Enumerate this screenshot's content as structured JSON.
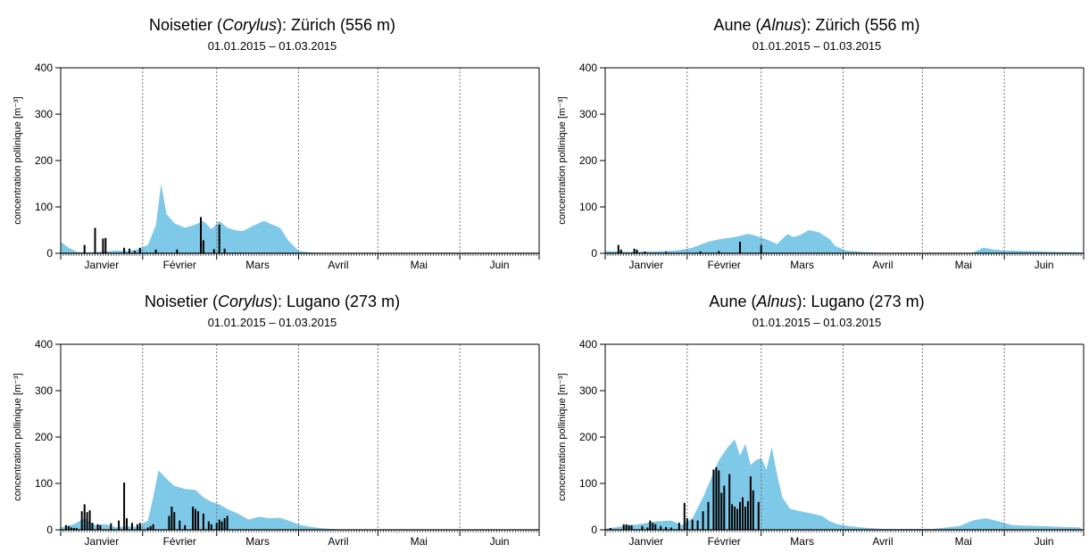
{
  "chart_data": [
    {
      "type": "area",
      "title_prefix": "Noisetier (",
      "title_taxon": "Corylus",
      "title_suffix": "): Zürich (556 m)",
      "subtitle": "01.01.2015 – 01.03.2015",
      "ylabel": "concentration pollinique [m⁻³]",
      "ylim": [
        0,
        400
      ],
      "yticks": [
        0,
        100,
        200,
        300,
        400
      ],
      "months": [
        "Janvier",
        "Février",
        "Mars",
        "Avril",
        "Mai",
        "Juin"
      ],
      "x_unit": "day of year 2015",
      "area_color": "#7ec8e8",
      "bar_color": "#000000",
      "series": [
        {
          "kind": "area",
          "points": [
            [
              1,
              25
            ],
            [
              4,
              12
            ],
            [
              7,
              3
            ],
            [
              12,
              2
            ],
            [
              18,
              4
            ],
            [
              22,
              6
            ],
            [
              26,
              5
            ],
            [
              30,
              8
            ],
            [
              34,
              18
            ],
            [
              37,
              60
            ],
            [
              39,
              150
            ],
            [
              41,
              85
            ],
            [
              44,
              65
            ],
            [
              48,
              55
            ],
            [
              52,
              62
            ],
            [
              55,
              70
            ],
            [
              58,
              52
            ],
            [
              61,
              70
            ],
            [
              64,
              55
            ],
            [
              67,
              50
            ],
            [
              70,
              48
            ],
            [
              74,
              60
            ],
            [
              78,
              70
            ],
            [
              81,
              62
            ],
            [
              84,
              55
            ],
            [
              87,
              28
            ],
            [
              91,
              5
            ],
            [
              95,
              2
            ],
            [
              101,
              0
            ],
            [
              181,
              0
            ]
          ]
        },
        {
          "kind": "bars",
          "points": [
            [
              10,
              18
            ],
            [
              14,
              55
            ],
            [
              17,
              32
            ],
            [
              18,
              33
            ],
            [
              25,
              12
            ],
            [
              27,
              10
            ],
            [
              29,
              5
            ],
            [
              31,
              12
            ],
            [
              37,
              8
            ],
            [
              45,
              8
            ],
            [
              54,
              78
            ],
            [
              55,
              28
            ],
            [
              59,
              9
            ],
            [
              61,
              62
            ],
            [
              63,
              10
            ]
          ]
        }
      ]
    },
    {
      "type": "area",
      "title_prefix": "Aune (",
      "title_taxon": "Alnus",
      "title_suffix": "): Zürich (556 m)",
      "subtitle": "01.01.2015 – 01.03.2015",
      "ylabel": "concentration pollinique [m⁻³]",
      "ylim": [
        0,
        400
      ],
      "yticks": [
        0,
        100,
        200,
        300,
        400
      ],
      "months": [
        "Janvier",
        "Février",
        "Mars",
        "Avril",
        "Mai",
        "Juin"
      ],
      "x_unit": "day of year 2015",
      "area_color": "#7ec8e8",
      "bar_color": "#000000",
      "series": [
        {
          "kind": "area",
          "points": [
            [
              1,
              5
            ],
            [
              10,
              3
            ],
            [
              20,
              4
            ],
            [
              28,
              6
            ],
            [
              34,
              12
            ],
            [
              40,
              25
            ],
            [
              44,
              30
            ],
            [
              50,
              35
            ],
            [
              55,
              42
            ],
            [
              58,
              38
            ],
            [
              62,
              30
            ],
            [
              66,
              20
            ],
            [
              70,
              42
            ],
            [
              72,
              35
            ],
            [
              75,
              40
            ],
            [
              78,
              50
            ],
            [
              82,
              45
            ],
            [
              86,
              30
            ],
            [
              88,
              16
            ],
            [
              92,
              6
            ],
            [
              98,
              3
            ],
            [
              105,
              1
            ],
            [
              140,
              1
            ],
            [
              144,
              12
            ],
            [
              148,
              8
            ],
            [
              152,
              6
            ],
            [
              160,
              5
            ],
            [
              170,
              3
            ],
            [
              181,
              2
            ]
          ]
        },
        {
          "kind": "bars",
          "points": [
            [
              6,
              18
            ],
            [
              7,
              8
            ],
            [
              12,
              10
            ],
            [
              13,
              8
            ],
            [
              16,
              4
            ],
            [
              24,
              3
            ],
            [
              37,
              4
            ],
            [
              44,
              5
            ],
            [
              52,
              25
            ],
            [
              60,
              18
            ]
          ]
        }
      ]
    },
    {
      "type": "area",
      "title_prefix": "Noisetier (",
      "title_taxon": "Corylus",
      "title_suffix": "): Lugano (273 m)",
      "subtitle": "01.01.2015 – 01.03.2015",
      "ylabel": "concentration pollinique [m⁻³]",
      "ylim": [
        0,
        400
      ],
      "yticks": [
        0,
        100,
        200,
        300,
        400
      ],
      "months": [
        "Janvier",
        "Février",
        "Mars",
        "Avril",
        "Mai",
        "Juin"
      ],
      "x_unit": "day of year 2015",
      "area_color": "#7ec8e8",
      "bar_color": "#000000",
      "series": [
        {
          "kind": "area",
          "points": [
            [
              1,
              5
            ],
            [
              6,
              12
            ],
            [
              10,
              25
            ],
            [
              14,
              10
            ],
            [
              18,
              12
            ],
            [
              22,
              5
            ],
            [
              26,
              8
            ],
            [
              30,
              6
            ],
            [
              34,
              20
            ],
            [
              36,
              70
            ],
            [
              38,
              128
            ],
            [
              41,
              110
            ],
            [
              44,
              95
            ],
            [
              48,
              88
            ],
            [
              52,
              86
            ],
            [
              55,
              70
            ],
            [
              58,
              60
            ],
            [
              61,
              55
            ],
            [
              64,
              45
            ],
            [
              68,
              35
            ],
            [
              72,
              22
            ],
            [
              76,
              28
            ],
            [
              80,
              25
            ],
            [
              84,
              26
            ],
            [
              88,
              18
            ],
            [
              92,
              10
            ],
            [
              96,
              6
            ],
            [
              100,
              3
            ],
            [
              106,
              1
            ],
            [
              181,
              0
            ]
          ]
        },
        {
          "kind": "bars",
          "points": [
            [
              3,
              10
            ],
            [
              4,
              8
            ],
            [
              5,
              5
            ],
            [
              6,
              4
            ],
            [
              7,
              4
            ],
            [
              9,
              40
            ],
            [
              10,
              55
            ],
            [
              11,
              38
            ],
            [
              12,
              42
            ],
            [
              13,
              15
            ],
            [
              15,
              12
            ],
            [
              16,
              10
            ],
            [
              20,
              14
            ],
            [
              23,
              20
            ],
            [
              25,
              102
            ],
            [
              26,
              25
            ],
            [
              28,
              15
            ],
            [
              30,
              12
            ],
            [
              31,
              15
            ],
            [
              34,
              5
            ],
            [
              35,
              8
            ],
            [
              36,
              12
            ],
            [
              42,
              30
            ],
            [
              43,
              50
            ],
            [
              44,
              38
            ],
            [
              46,
              20
            ],
            [
              48,
              10
            ],
            [
              51,
              50
            ],
            [
              52,
              45
            ],
            [
              53,
              40
            ],
            [
              55,
              35
            ],
            [
              57,
              18
            ],
            [
              58,
              12
            ],
            [
              60,
              15
            ],
            [
              61,
              22
            ],
            [
              62,
              18
            ],
            [
              63,
              25
            ],
            [
              64,
              30
            ]
          ]
        }
      ]
    },
    {
      "type": "area",
      "title_prefix": "Aune (",
      "title_taxon": "Alnus",
      "title_suffix": "): Lugano (273 m)",
      "subtitle": "01.01.2015 – 01.03.2015",
      "ylabel": "concentration pollinique [m⁻³]",
      "ylim": [
        0,
        400
      ],
      "yticks": [
        0,
        100,
        200,
        300,
        400
      ],
      "months": [
        "Janvier",
        "Février",
        "Mars",
        "Avril",
        "Mai",
        "Juin"
      ],
      "x_unit": "day of year 2015",
      "area_color": "#7ec8e8",
      "bar_color": "#000000",
      "series": [
        {
          "kind": "area",
          "points": [
            [
              1,
              2
            ],
            [
              8,
              8
            ],
            [
              14,
              12
            ],
            [
              20,
              18
            ],
            [
              26,
              20
            ],
            [
              30,
              10
            ],
            [
              34,
              25
            ],
            [
              38,
              70
            ],
            [
              41,
              110
            ],
            [
              44,
              150
            ],
            [
              47,
              175
            ],
            [
              50,
              195
            ],
            [
              52,
              160
            ],
            [
              54,
              185
            ],
            [
              56,
              140
            ],
            [
              58,
              150
            ],
            [
              60,
              155
            ],
            [
              62,
              130
            ],
            [
              64,
              178
            ],
            [
              66,
              120
            ],
            [
              68,
              70
            ],
            [
              71,
              45
            ],
            [
              75,
              40
            ],
            [
              79,
              35
            ],
            [
              83,
              30
            ],
            [
              86,
              18
            ],
            [
              89,
              12
            ],
            [
              93,
              8
            ],
            [
              98,
              5
            ],
            [
              106,
              2
            ],
            [
              125,
              2
            ],
            [
              135,
              8
            ],
            [
              140,
              20
            ],
            [
              145,
              25
            ],
            [
              150,
              18
            ],
            [
              155,
              10
            ],
            [
              165,
              8
            ],
            [
              175,
              6
            ],
            [
              181,
              5
            ]
          ]
        },
        {
          "kind": "bars",
          "points": [
            [
              3,
              4
            ],
            [
              8,
              12
            ],
            [
              9,
              12
            ],
            [
              10,
              10
            ],
            [
              11,
              10
            ],
            [
              15,
              8
            ],
            [
              17,
              5
            ],
            [
              18,
              20
            ],
            [
              19,
              15
            ],
            [
              20,
              12
            ],
            [
              22,
              8
            ],
            [
              24,
              6
            ],
            [
              26,
              5
            ],
            [
              29,
              15
            ],
            [
              31,
              58
            ],
            [
              32,
              25
            ],
            [
              34,
              22
            ],
            [
              36,
              20
            ],
            [
              38,
              40
            ],
            [
              40,
              60
            ],
            [
              42,
              130
            ],
            [
              43,
              135
            ],
            [
              44,
              128
            ],
            [
              45,
              80
            ],
            [
              46,
              95
            ],
            [
              48,
              120
            ],
            [
              49,
              55
            ],
            [
              50,
              50
            ],
            [
              51,
              45
            ],
            [
              52,
              60
            ],
            [
              53,
              70
            ],
            [
              54,
              50
            ],
            [
              55,
              62
            ],
            [
              56,
              115
            ],
            [
              57,
              85
            ],
            [
              59,
              60
            ]
          ]
        }
      ]
    }
  ]
}
